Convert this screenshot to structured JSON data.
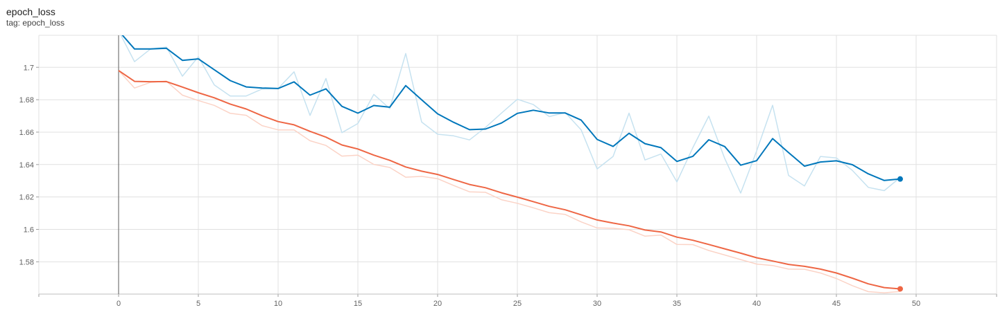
{
  "header": {
    "title": "epoch_loss",
    "tag": "tag: epoch_loss"
  },
  "chart_data": {
    "type": "line",
    "title": "epoch_loss",
    "xlabel": "",
    "ylabel": "",
    "xlim": [
      -5,
      55
    ],
    "ylim": [
      1.57,
      1.72
    ],
    "xticks": [
      0,
      5,
      10,
      15,
      20,
      25,
      30,
      35,
      40,
      45,
      50
    ],
    "yticks": [
      1.58,
      1.6,
      1.62,
      1.64,
      1.66,
      1.68,
      1.7
    ],
    "ytick_labels": [
      "1.58",
      "1.6",
      "1.62",
      "1.64",
      "1.66",
      "1.68",
      "1.7"
    ],
    "grid": true,
    "legend": "none",
    "series": [
      {
        "color": "#0077bb",
        "raw_color": "#c6e2f0",
        "x": [
          0,
          1,
          2,
          3,
          4,
          5,
          6,
          7,
          8,
          9,
          10,
          11,
          12,
          13,
          14,
          15,
          16,
          17,
          18,
          19,
          20,
          21,
          22,
          23,
          24,
          25,
          26,
          27,
          28,
          29,
          30,
          31,
          32,
          33,
          34,
          35,
          36,
          37,
          38,
          39,
          40,
          41,
          42,
          43,
          44,
          45,
          46,
          47,
          48,
          49
        ],
        "values": [
          1.7225,
          1.7113,
          1.7113,
          1.7117,
          1.7043,
          1.7052,
          1.6985,
          1.6918,
          1.6879,
          1.6872,
          1.6869,
          1.691,
          1.6828,
          1.6867,
          1.6759,
          1.6717,
          1.6764,
          1.6754,
          1.6887,
          1.6799,
          1.6713,
          1.6661,
          1.6615,
          1.6619,
          1.6656,
          1.6716,
          1.6735,
          1.6718,
          1.6718,
          1.6674,
          1.6555,
          1.6512,
          1.6593,
          1.6529,
          1.6504,
          1.6419,
          1.6451,
          1.6553,
          1.6511,
          1.6396,
          1.6424,
          1.656,
          1.6474,
          1.639,
          1.6416,
          1.6423,
          1.6399,
          1.6343,
          1.6302,
          1.6311
        ],
        "raw_values": [
          1.7225,
          1.7035,
          1.7113,
          1.7125,
          1.6945,
          1.7065,
          1.6891,
          1.6823,
          1.6823,
          1.6866,
          1.6869,
          1.6972,
          1.6703,
          1.6931,
          1.6597,
          1.6653,
          1.6833,
          1.6745,
          1.7085,
          1.6662,
          1.6587,
          1.6577,
          1.6552,
          1.6629,
          1.6717,
          1.6803,
          1.677,
          1.6696,
          1.6721,
          1.6614,
          1.6373,
          1.645,
          1.6717,
          1.6428,
          1.6465,
          1.6293,
          1.6504,
          1.6699,
          1.6437,
          1.6224,
          1.6484,
          1.6766,
          1.6333,
          1.6268,
          1.645,
          1.6441,
          1.6364,
          1.6259,
          1.6239,
          1.632
        ]
      },
      {
        "color": "#ee6644",
        "raw_color": "#fbd3c6",
        "x": [
          0,
          1,
          2,
          3,
          4,
          5,
          6,
          7,
          8,
          9,
          10,
          11,
          12,
          13,
          14,
          15,
          16,
          17,
          18,
          19,
          20,
          21,
          22,
          23,
          24,
          25,
          26,
          27,
          28,
          29,
          30,
          31,
          32,
          33,
          34,
          35,
          36,
          37,
          38,
          39,
          40,
          41,
          42,
          43,
          44,
          45,
          46,
          47,
          48,
          49
        ],
        "values": [
          1.698,
          1.6913,
          1.6911,
          1.6912,
          1.6878,
          1.6843,
          1.6812,
          1.6773,
          1.6743,
          1.6701,
          1.6665,
          1.6645,
          1.6605,
          1.6569,
          1.6521,
          1.6496,
          1.6458,
          1.6426,
          1.6385,
          1.6359,
          1.6339,
          1.6308,
          1.6277,
          1.6257,
          1.6226,
          1.6199,
          1.6171,
          1.6142,
          1.6121,
          1.609,
          1.6058,
          1.6039,
          1.6022,
          1.5996,
          1.5984,
          1.5952,
          1.5933,
          1.5907,
          1.588,
          1.5853,
          1.5825,
          1.5805,
          1.5784,
          1.5772,
          1.5755,
          1.5731,
          1.5699,
          1.5664,
          1.5641,
          1.5633
        ],
        "raw_values": [
          1.698,
          1.6872,
          1.6907,
          1.6914,
          1.6828,
          1.6795,
          1.6765,
          1.6716,
          1.6704,
          1.664,
          1.6614,
          1.6614,
          1.6547,
          1.6518,
          1.6452,
          1.6458,
          1.6401,
          1.6382,
          1.6322,
          1.6327,
          1.6313,
          1.6271,
          1.6232,
          1.6229,
          1.6183,
          1.6161,
          1.6133,
          1.6103,
          1.6092,
          1.6046,
          1.6009,
          1.6007,
          1.5998,
          1.5958,
          1.5965,
          1.5907,
          1.5906,
          1.587,
          1.5842,
          1.5814,
          1.5786,
          1.5777,
          1.5755,
          1.5754,
          1.5731,
          1.5697,
          1.5653,
          1.5616,
          1.5609,
          1.5617
        ]
      }
    ]
  }
}
